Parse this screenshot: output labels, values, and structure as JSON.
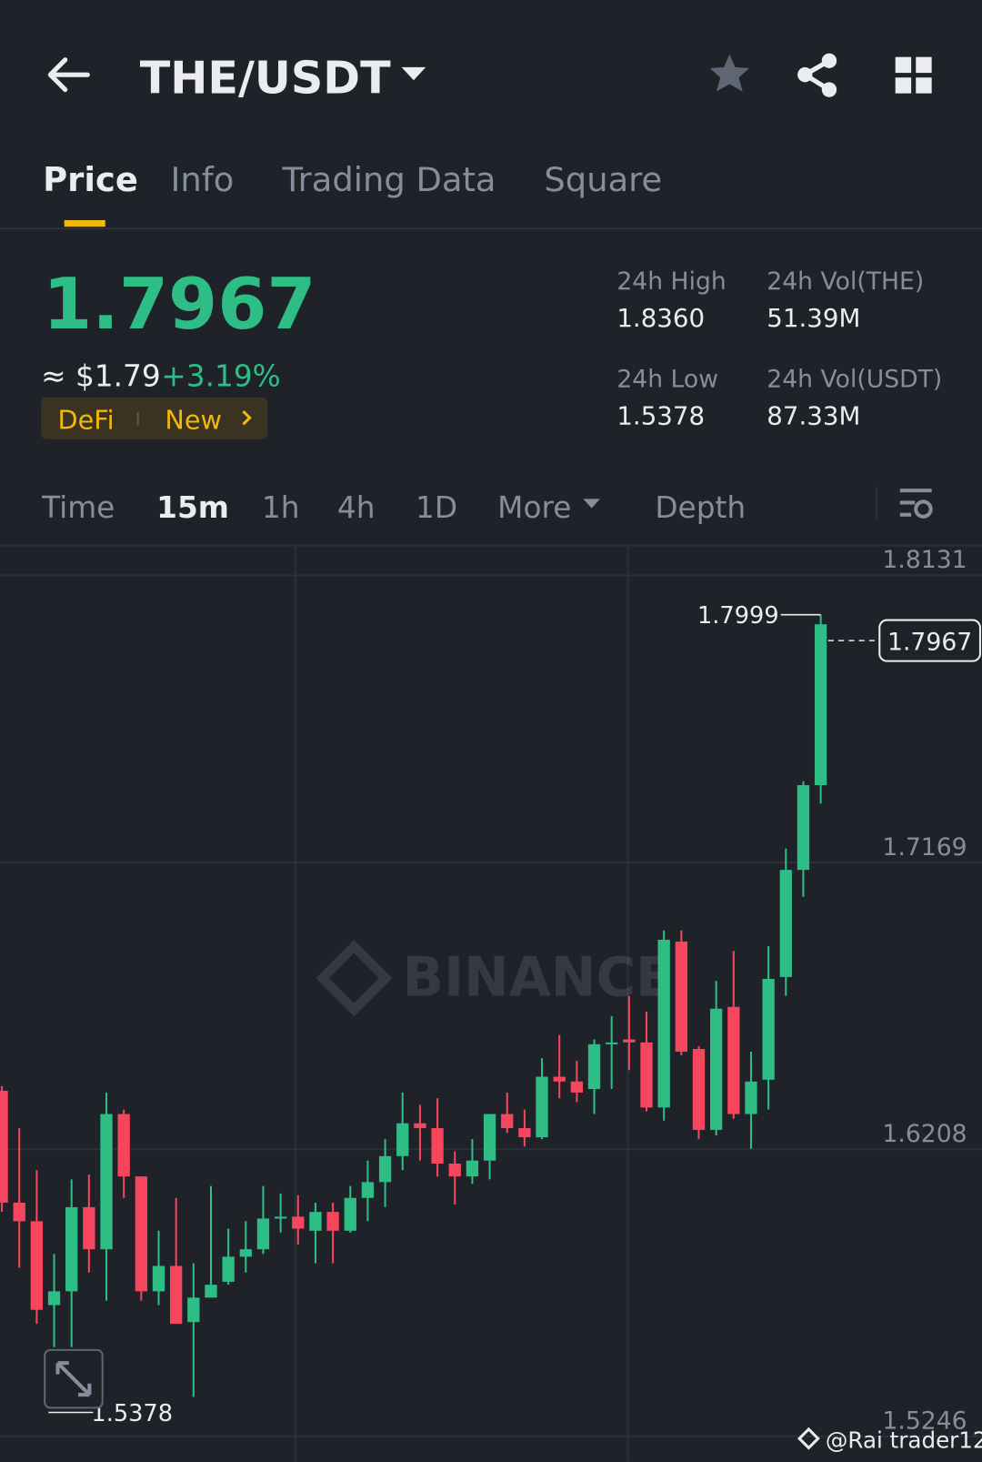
{
  "header": {
    "pair": "THE/USDT"
  },
  "tabs": [
    "Price",
    "Info",
    "Trading Data",
    "Square"
  ],
  "ticker": {
    "price": "1.7967",
    "usd": "≈ $1.79",
    "change": "+3.19%",
    "tags": [
      "DeFi",
      "New"
    ]
  },
  "stats": [
    {
      "label": "24h High",
      "value": "1.8360"
    },
    {
      "label": "24h Vol(THE)",
      "value": "51.39M"
    },
    {
      "label": "24h Low",
      "value": "1.5378"
    },
    {
      "label": "24h Vol(USDT)",
      "value": "87.33M"
    }
  ],
  "intervals": [
    "Time",
    "15m",
    "1h",
    "4h",
    "1D",
    "More",
    "Depth"
  ],
  "watermark": "BINANCE",
  "credit": "@Rai trader12",
  "chart_data": {
    "type": "candlestick",
    "up_color": "#2ebd85",
    "down_color": "#f6465d",
    "ylim": [
      1.517,
      1.8231
    ],
    "yticks": [
      1.8131,
      1.7169,
      1.6208,
      1.5246
    ],
    "grid": true,
    "open": [
      1.6404,
      1.6029,
      1.5967,
      1.5686,
      1.5732,
      1.6014,
      1.5873,
      1.6326,
      1.6117,
      1.5732,
      1.5817,
      1.5629,
      1.5711,
      1.5764,
      1.5848,
      1.5873,
      1.5976,
      1.5982,
      1.5935,
      1.5998,
      1.5935,
      1.6045,
      1.6098,
      1.6185,
      1.6295,
      1.6279,
      1.616,
      1.6117,
      1.617,
      1.6326,
      1.6279,
      1.6248,
      1.6451,
      1.6435,
      1.641,
      1.656,
      1.6576,
      1.6566,
      1.6348,
      1.6904,
      1.6544,
      1.6273,
      1.6685,
      1.6326,
      1.6441,
      1.6785,
      1.7144,
      1.7428
    ],
    "high": [
      1.642,
      1.6279,
      1.6138,
      1.5857,
      1.6107,
      1.6123,
      1.6398,
      1.6341,
      1.6117,
      1.5935,
      1.6045,
      1.5826,
      1.6085,
      1.5942,
      1.5967,
      1.6085,
      1.606,
      1.6054,
      1.6029,
      1.6029,
      1.6085,
      1.617,
      1.6242,
      1.6398,
      1.6357,
      1.6379,
      1.6201,
      1.6242,
      1.6326,
      1.6398,
      1.6341,
      1.6513,
      1.6591,
      1.6504,
      1.6576,
      1.6654,
      1.6722,
      1.6669,
      1.6941,
      1.6941,
      1.6554,
      1.6772,
      1.6872,
      1.6535,
      1.6888,
      1.7216,
      1.7441,
      1.7999
    ],
    "low": [
      1.5998,
      1.5811,
      1.5623,
      1.5545,
      1.5545,
      1.5795,
      1.5701,
      1.6045,
      1.5701,
      1.5686,
      1.5623,
      1.5378,
      1.5711,
      1.5754,
      1.5795,
      1.5857,
      1.5929,
      1.5889,
      1.5826,
      1.5826,
      1.5929,
      1.5967,
      1.6014,
      1.6138,
      1.617,
      1.6117,
      1.6023,
      1.6092,
      1.6107,
      1.6263,
      1.6217,
      1.6242,
      1.6379,
      1.6366,
      1.6326,
      1.641,
      1.6473,
      1.6335,
      1.6304,
      1.6523,
      1.6242,
      1.6254,
      1.631,
      1.621,
      1.6341,
      1.6722,
      1.7054,
      1.7366
    ],
    "close": [
      1.6029,
      1.5967,
      1.567,
      1.5732,
      1.6014,
      1.5873,
      1.6326,
      1.6117,
      1.5732,
      1.5817,
      1.5623,
      1.5711,
      1.5754,
      1.5848,
      1.5873,
      1.5976,
      1.5982,
      1.5942,
      1.5998,
      1.5935,
      1.6045,
      1.6098,
      1.6185,
      1.6295,
      1.6279,
      1.616,
      1.6117,
      1.617,
      1.6326,
      1.6279,
      1.6248,
      1.6451,
      1.6435,
      1.6398,
      1.656,
      1.6566,
      1.6566,
      1.6348,
      1.691,
      1.6535,
      1.6273,
      1.6679,
      1.6326,
      1.6435,
      1.6779,
      1.7144,
      1.7428,
      1.7967
    ]
  }
}
